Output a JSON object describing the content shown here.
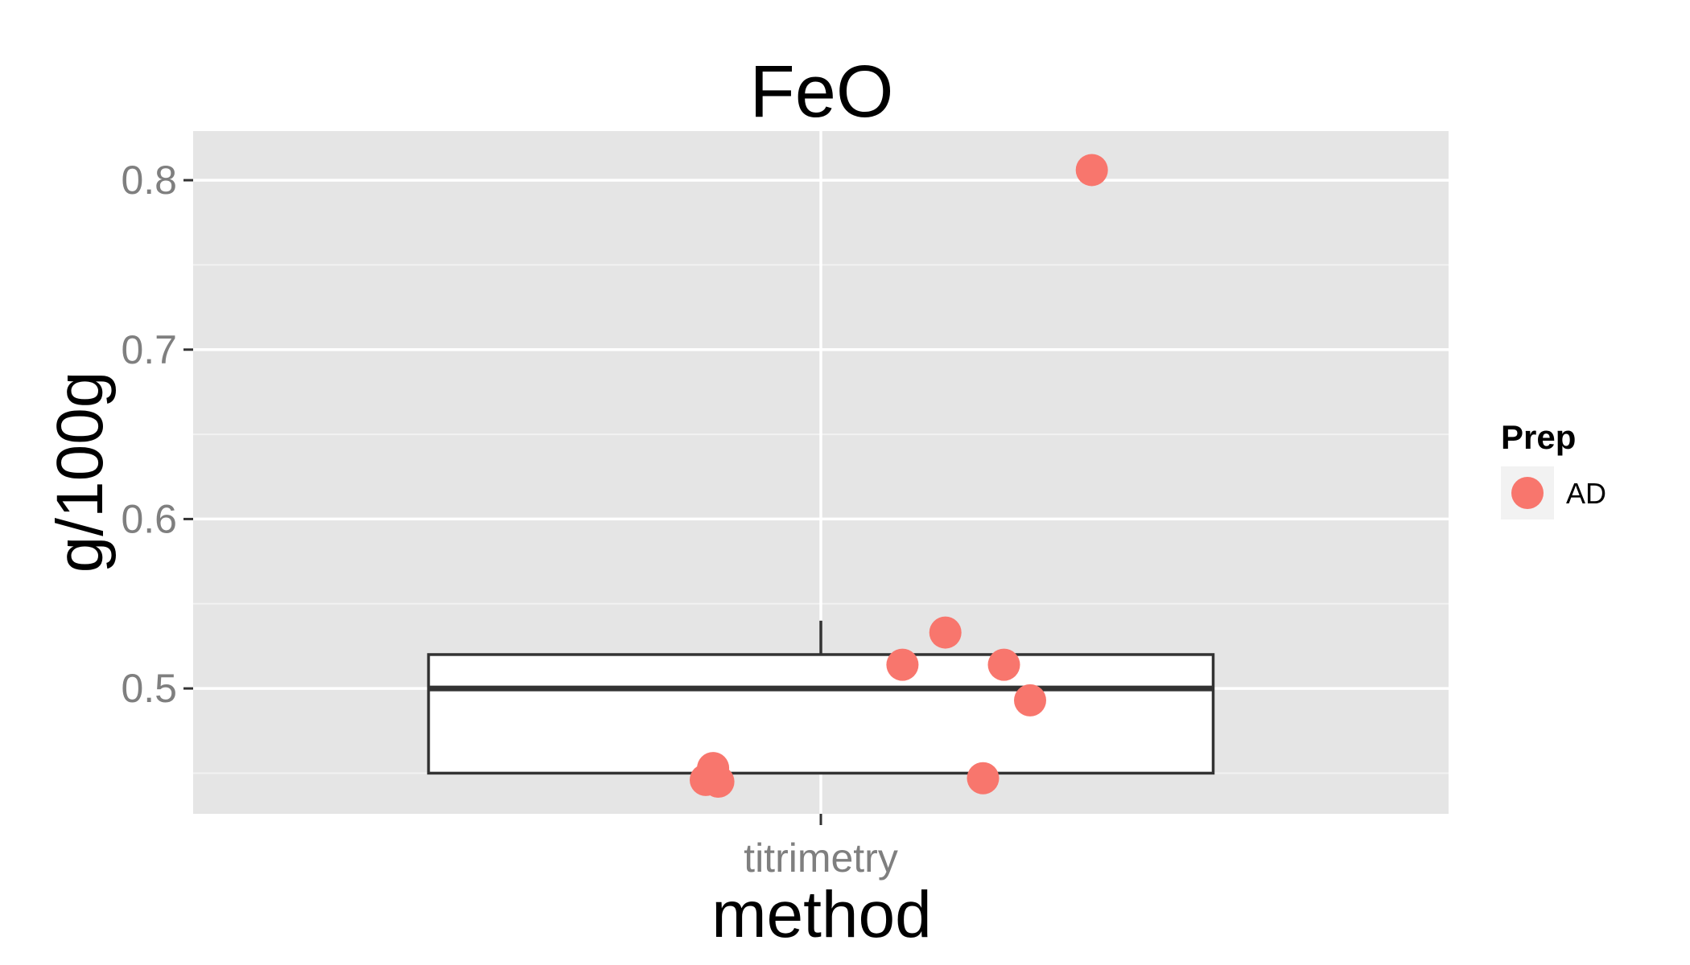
{
  "chart_data": {
    "type": "boxplot",
    "title": "FeO",
    "xlabel": "method",
    "ylabel": "g/100g",
    "categories": [
      "titrimetry"
    ],
    "ylim": [
      0.426,
      0.829
    ],
    "yticks": [
      0.5,
      0.6,
      0.7,
      0.8
    ],
    "ytick_labels": [
      "0.5",
      "0.6",
      "0.7",
      "0.8"
    ],
    "grid": true,
    "box": {
      "category": "titrimetry",
      "lower_whisker": 0.45,
      "q1": 0.45,
      "median": 0.5,
      "q3": 0.52,
      "upper_whisker": 0.54
    },
    "points": [
      {
        "x_jitter": -0.11,
        "y": 0.446
      },
      {
        "x_jitter": -0.098,
        "y": 0.445
      },
      {
        "x_jitter": -0.103,
        "y": 0.453
      },
      {
        "x_jitter": 0.078,
        "y": 0.514
      },
      {
        "x_jitter": 0.119,
        "y": 0.533
      },
      {
        "x_jitter": 0.175,
        "y": 0.514
      },
      {
        "x_jitter": 0.2,
        "y": 0.493
      },
      {
        "x_jitter": 0.155,
        "y": 0.447
      },
      {
        "x_jitter": 0.259,
        "y": 0.806
      }
    ],
    "legend": {
      "title": "Prep",
      "position": "right",
      "entries": [
        {
          "label": "AD",
          "color": "#F8766D"
        }
      ]
    },
    "colors": {
      "panel": "#E5E5E5",
      "grid_major": "#FFFFFF",
      "grid_minor": "#F2F2F2",
      "point": "#F8766D",
      "box_fill": "#FFFFFF",
      "box_line": "#333333"
    }
  }
}
